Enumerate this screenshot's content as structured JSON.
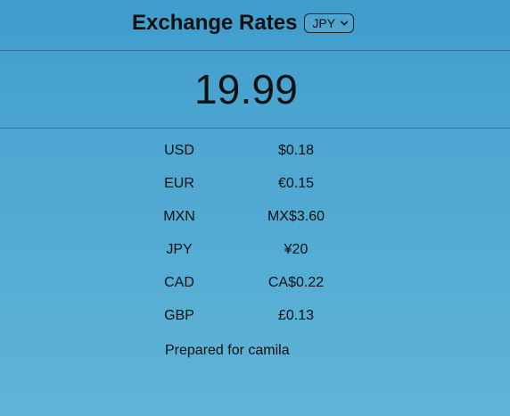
{
  "header": {
    "title": "Exchange Rates",
    "currency_select": {
      "selected": "JPY",
      "icon": "chevron-down-icon"
    }
  },
  "amount": {
    "value": "19.99"
  },
  "rates": [
    {
      "code": "USD",
      "value": "$0.18"
    },
    {
      "code": "EUR",
      "value": "€0.15"
    },
    {
      "code": "MXN",
      "value": "MX$3.60"
    },
    {
      "code": "JPY",
      "value": "¥20"
    },
    {
      "code": "CAD",
      "value": "CA$0.22"
    },
    {
      "code": "GBP",
      "value": "£0.13"
    }
  ],
  "footer": {
    "prepared_for": "Prepared for camila"
  },
  "colors": {
    "background_top": "#3f9ccb",
    "background_bottom": "#5fb4d6",
    "text": "#111111"
  }
}
